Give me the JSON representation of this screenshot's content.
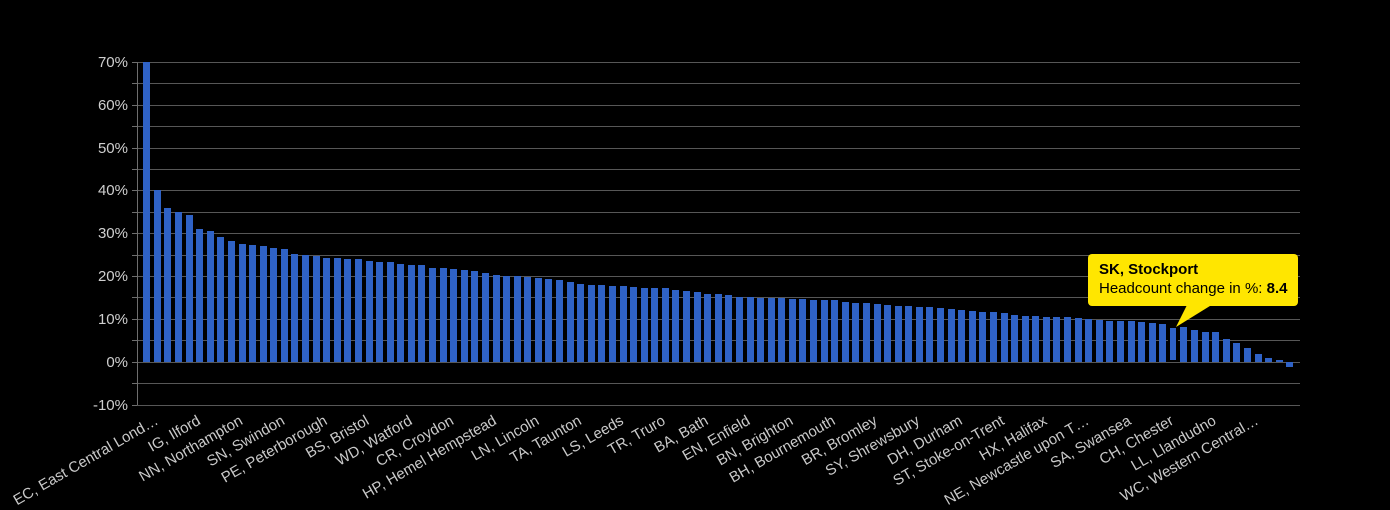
{
  "chart_data": {
    "type": "bar",
    "title": "",
    "series_name": "Headcount change in %",
    "bar_color": "#2f62c6",
    "highlight_color": "#2f62c6",
    "grid": true,
    "legend": "none",
    "y_axis": {
      "min": -10,
      "max": 70,
      "major_step": 10,
      "minor_step": 5,
      "tick_values": [
        70,
        60,
        50,
        40,
        30,
        20,
        10,
        0,
        -10
      ],
      "tick_labels": [
        "70%",
        "60%",
        "50%",
        "40%",
        "30%",
        "20%",
        "10%",
        "0%",
        "-10%"
      ]
    },
    "x_axis": {
      "labeled_every_n_bars": 4,
      "labels": [
        {
          "i": 0,
          "label": "EC, East Central Lond…"
        },
        {
          "i": 4,
          "label": "IG, Ilford"
        },
        {
          "i": 8,
          "label": "NN, Northampton"
        },
        {
          "i": 12,
          "label": "SN, Swindon"
        },
        {
          "i": 16,
          "label": "PE, Peterborough"
        },
        {
          "i": 20,
          "label": "BS, Bristol"
        },
        {
          "i": 24,
          "label": "WD, Watford"
        },
        {
          "i": 28,
          "label": "CR, Croydon"
        },
        {
          "i": 32,
          "label": "HP, Hemel Hempstead"
        },
        {
          "i": 36,
          "label": "LN, Lincoln"
        },
        {
          "i": 40,
          "label": "TA, Taunton"
        },
        {
          "i": 44,
          "label": "LS, Leeds"
        },
        {
          "i": 48,
          "label": "TR, Truro"
        },
        {
          "i": 52,
          "label": "BA, Bath"
        },
        {
          "i": 56,
          "label": "EN, Enfield"
        },
        {
          "i": 60,
          "label": "BN, Brighton"
        },
        {
          "i": 64,
          "label": "BH, Bournemouth"
        },
        {
          "i": 68,
          "label": "BR, Bromley"
        },
        {
          "i": 72,
          "label": "SY, Shrewsbury"
        },
        {
          "i": 76,
          "label": "DH, Durham"
        },
        {
          "i": 80,
          "label": "ST, Stoke-on-Trent"
        },
        {
          "i": 84,
          "label": "HX, Halifax"
        },
        {
          "i": 88,
          "label": "NE, Newcastle upon T…"
        },
        {
          "i": 92,
          "label": "SA, Swansea"
        },
        {
          "i": 96,
          "label": "CH, Chester"
        },
        {
          "i": 100,
          "label": "LL, Llandudno"
        },
        {
          "i": 104,
          "label": "WC, Western Central…"
        }
      ]
    },
    "values": [
      70,
      40,
      35.8,
      35,
      34.3,
      31,
      30.4,
      29.1,
      28.2,
      27.5,
      27.2,
      27,
      26.6,
      26.2,
      25.1,
      24.9,
      24.6,
      24.3,
      24.1,
      24,
      23.9,
      23.6,
      23.3,
      23.2,
      22.9,
      22.6,
      22.5,
      21.9,
      21.8,
      21.6,
      21.3,
      21.1,
      20.6,
      20.2,
      20.1,
      19.9,
      19.8,
      19.6,
      19.4,
      19.1,
      18.5,
      18.1,
      18,
      17.9,
      17.7,
      17.6,
      17.4,
      17.3,
      17.2,
      17.1,
      16.8,
      16.5,
      16.2,
      15.9,
      15.8,
      15.6,
      15.2,
      15.1,
      14.9,
      14.8,
      14.8,
      14.7,
      14.6,
      14.5,
      14.4,
      14.3,
      14,
      13.8,
      13.6,
      13.4,
      13.2,
      13.1,
      12.9,
      12.8,
      12.7,
      12.5,
      12.3,
      12,
      11.8,
      11.7,
      11.5,
      11.3,
      10.9,
      10.7,
      10.6,
      10.5,
      10.5,
      10.4,
      10.1,
      10,
      9.8,
      9.6,
      9.5,
      9.4,
      9.3,
      9,
      8.7,
      8.4,
      8,
      7.4,
      7,
      6.9,
      5.2,
      4.4,
      3.3,
      1.7,
      0.9,
      0.3,
      -1.3
    ],
    "highlight": {
      "index": 97,
      "area": "SK, Stockport",
      "value": 8.4
    }
  },
  "tooltip": {
    "title": "SK, Stockport",
    "metric_label": "Headcount change in %: ",
    "value": "8.4",
    "bg_color": "#ffe600"
  }
}
